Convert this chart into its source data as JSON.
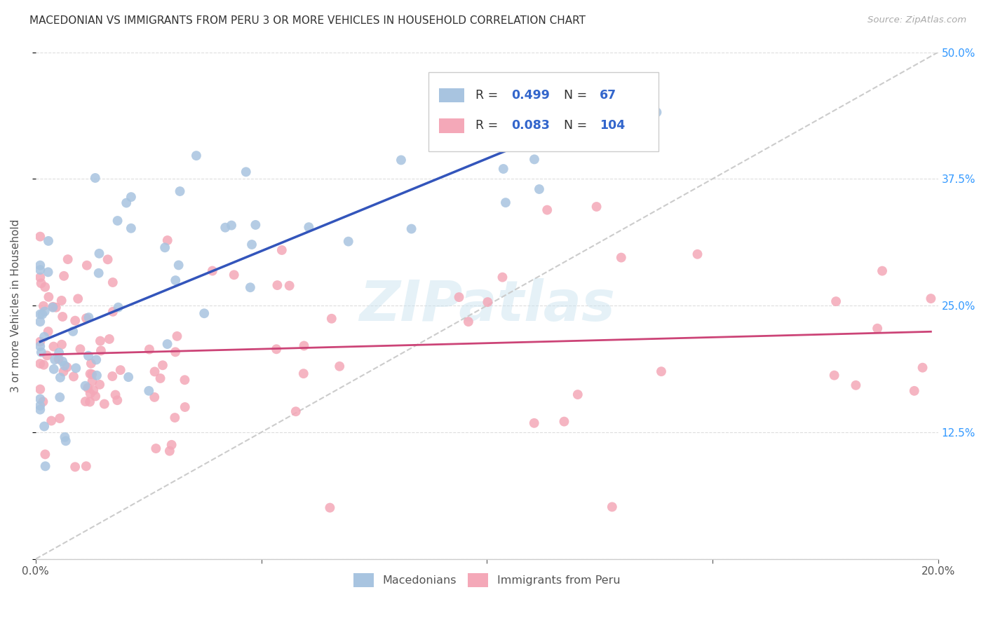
{
  "title": "MACEDONIAN VS IMMIGRANTS FROM PERU 3 OR MORE VEHICLES IN HOUSEHOLD CORRELATION CHART",
  "source": "Source: ZipAtlas.com",
  "ylabel": "3 or more Vehicles in Household",
  "x_min": 0.0,
  "x_max": 0.2,
  "y_min": 0.0,
  "y_max": 0.5,
  "macedonian_color": "#a8c4e0",
  "peru_color": "#f4a8b8",
  "macedonian_line_color": "#3355bb",
  "peru_line_color": "#cc4477",
  "trendline_gray_color": "#cccccc",
  "R_macedonian": 0.499,
  "N_macedonian": 67,
  "R_peru": 0.083,
  "N_peru": 104,
  "legend_label_macedonian": "Macedonians",
  "legend_label_peru": "Immigrants from Peru",
  "watermark_text": "ZIPatlas",
  "label_color_blue": "#3366cc",
  "grid_color": "#dddddd",
  "right_axis_color": "#3399ff"
}
